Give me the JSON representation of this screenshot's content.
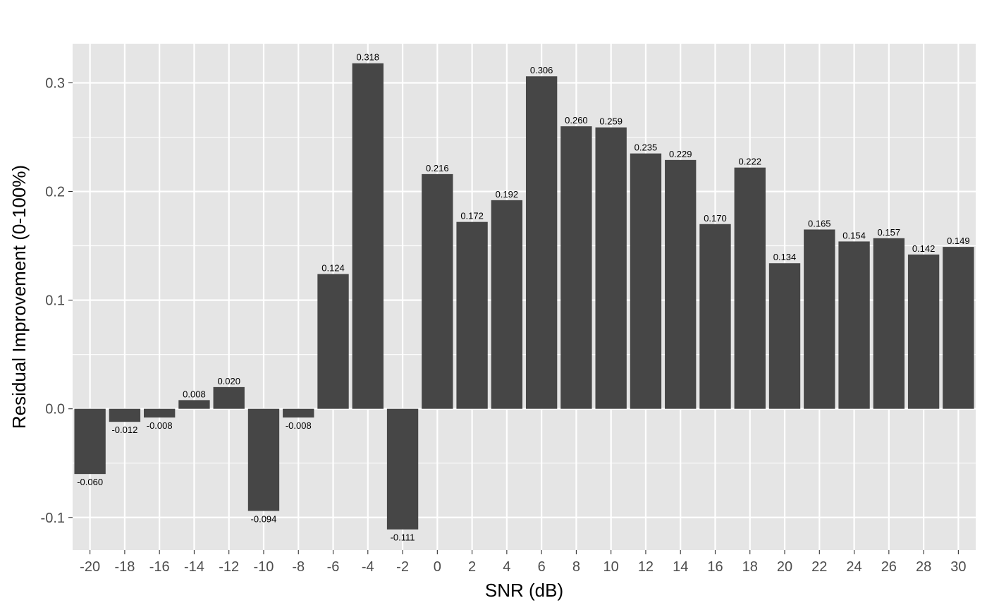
{
  "chart_data": {
    "type": "bar",
    "title": "",
    "xlabel": "SNR (dB)",
    "ylabel": "Residual Improvement (0-100%)",
    "categories": [
      "-20",
      "-18",
      "-16",
      "-14",
      "-12",
      "-10",
      "-8",
      "-6",
      "-4",
      "-2",
      "0",
      "2",
      "4",
      "6",
      "8",
      "10",
      "12",
      "14",
      "16",
      "18",
      "20",
      "22",
      "24",
      "26",
      "28",
      "30"
    ],
    "values": [
      -0.06,
      -0.012,
      -0.008,
      0.008,
      0.02,
      -0.094,
      -0.008,
      0.124,
      0.318,
      -0.111,
      0.216,
      0.172,
      0.192,
      0.306,
      0.26,
      0.259,
      0.235,
      0.229,
      0.17,
      0.222,
      0.134,
      0.165,
      0.154,
      0.157,
      0.142,
      0.149
    ],
    "value_labels": [
      "-0.060",
      "-0.012",
      "-0.008",
      "0.008",
      "0.020",
      "-0.094",
      "-0.008",
      "0.124",
      "0.318",
      "-0.111",
      "0.216",
      "0.172",
      "0.192",
      "0.306",
      "0.260",
      "0.259",
      "0.235",
      "0.229",
      "0.170",
      "0.222",
      "0.134",
      "0.165",
      "0.154",
      "0.157",
      "0.142",
      "0.149"
    ],
    "ylim": [
      -0.13,
      0.336
    ],
    "y_ticks": [
      -0.1,
      0.0,
      0.1,
      0.2,
      0.3
    ],
    "y_tick_labels": [
      "-0.1",
      "0.0",
      "0.1",
      "0.2",
      "0.3"
    ],
    "grid": true,
    "legend": "none",
    "colors": {
      "bar": "#464646",
      "panel": "#e5e5e5",
      "grid": "#ffffff",
      "tick_label": "#4d4d4d"
    }
  }
}
